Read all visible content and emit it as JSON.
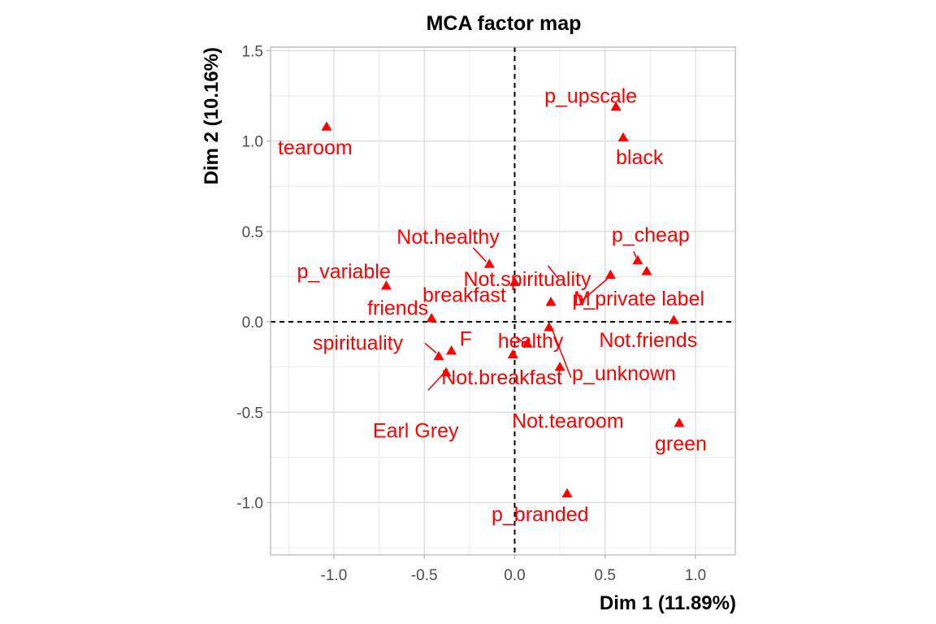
{
  "chart_data": {
    "type": "scatter",
    "title": "MCA factor map",
    "xlabel": "Dim 1 (11.89%)",
    "ylabel": "Dim 2 (10.16%)",
    "xlim": [
      -1.35,
      1.22
    ],
    "ylim": [
      -1.29,
      1.52
    ],
    "xticks": [
      -1.0,
      -0.5,
      0.0,
      0.5,
      1.0
    ],
    "xtick_labels": [
      "-1.0",
      "-0.5",
      "0.0",
      "0.5",
      "1.0"
    ],
    "yticks": [
      -1.0,
      -0.5,
      0.0,
      0.5,
      1.0,
      1.5
    ],
    "ytick_labels": [
      "-1.0",
      "-0.5",
      "0.0",
      "0.5",
      "1.0",
      "1.5"
    ],
    "reference_lines": {
      "x": 0,
      "y": 0,
      "style": "dashed"
    },
    "grid": true,
    "marker": "triangle",
    "color": "#ff0000",
    "points": [
      {
        "label": "p_upscale",
        "x": 0.56,
        "y": 1.19
      },
      {
        "label": "black",
        "x": 0.6,
        "y": 1.02
      },
      {
        "label": "tearoom",
        "x": -1.04,
        "y": 1.08
      },
      {
        "label": "p_cheap",
        "x": 0.68,
        "y": 0.34
      },
      {
        "label": "Not.healthy",
        "x": -0.14,
        "y": 0.32
      },
      {
        "label": "p_variable",
        "x": -0.71,
        "y": 0.2
      },
      {
        "label": "Not.spirituality",
        "x": 0.0,
        "y": 0.22
      },
      {
        "label": "M",
        "x": 0.73,
        "y": 0.28
      },
      {
        "label": "p_private label",
        "x": 0.53,
        "y": 0.26
      },
      {
        "label": "friends",
        "x": -0.46,
        "y": 0.02
      },
      {
        "label": "breakfast",
        "x": 0.2,
        "y": 0.11
      },
      {
        "label": "Not.friends",
        "x": 0.88,
        "y": 0.01
      },
      {
        "label": "healthy",
        "x": 0.19,
        "y": -0.03
      },
      {
        "label": "spirituality",
        "x": -0.42,
        "y": -0.19
      },
      {
        "label": "F",
        "x": -0.35,
        "y": -0.16
      },
      {
        "label": "Not.breakfast",
        "x": -0.01,
        "y": -0.18
      },
      {
        "label": "p_unknown",
        "x": 0.07,
        "y": -0.12
      },
      {
        "label": "Earl Grey",
        "x": -0.38,
        "y": -0.28
      },
      {
        "label": "Not.tearoom",
        "x": 0.25,
        "y": -0.25
      },
      {
        "label": "green",
        "x": 0.91,
        "y": -0.56
      },
      {
        "label": "p_branded",
        "x": 0.29,
        "y": -0.95
      }
    ]
  }
}
